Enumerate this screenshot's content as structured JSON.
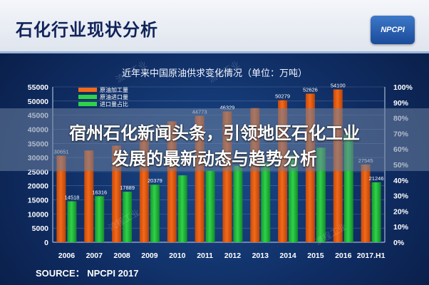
{
  "header": {
    "title": "石化行业现状分析",
    "logo_text": "NPCPI"
  },
  "overlay": {
    "line1": "宿州石化新闻头条，引领地区石化工业",
    "line2": "发展的最新动态与趋势分析"
  },
  "source": "SOURCE：  NPCPI 2017",
  "watermark": "流程工业",
  "colors": {
    "production": "#f26a1b",
    "import": "#2fd24a",
    "header_bg": "#e8ecf3",
    "title_text": "#10235a"
  },
  "chart_data": {
    "type": "bar",
    "title": "近年来中国原油供求变化情况（单位：万吨）",
    "categories": [
      "2006",
      "2007",
      "2008",
      "2009",
      "2010",
      "2011",
      "2012",
      "2013",
      "2014",
      "2015",
      "2016",
      "2017.H1"
    ],
    "series": [
      {
        "name": "原油加工量",
        "values": [
          30651,
          32500,
          34200,
          37500,
          42800,
          44773,
          46329,
          47500,
          50279,
          52626,
          54100,
          27545
        ]
      },
      {
        "name": "原油进口量",
        "values": [
          14518,
          16316,
          17889,
          20379,
          23700,
          25300,
          27100,
          28200,
          30800,
          33500,
          38100,
          21246
        ]
      }
    ],
    "data_labels": [
      [
        "30651",
        "",
        "",
        "",
        "",
        "44773",
        "46329",
        "",
        "50279",
        "52626",
        "54100",
        "27545"
      ],
      [
        "14518",
        "16316",
        "17889",
        "20379",
        "",
        "",
        "",
        "",
        "",
        "",
        "",
        "21246"
      ]
    ],
    "legend_entries": [
      "原油加工量",
      "原油进口量",
      "进口量占比"
    ],
    "legend_placement": "top-left",
    "left_axis": {
      "ylim": [
        0,
        55000
      ],
      "ticks": [
        "0",
        "5000",
        "10000",
        "15000",
        "20000",
        "25000",
        "30000",
        "35000",
        "40000",
        "45000",
        "50000",
        "55000"
      ]
    },
    "right_axis": {
      "ticks": [
        "0%",
        "10%",
        "20%",
        "30%",
        "40%",
        "50%",
        "60%",
        "70%",
        "80%",
        "90%",
        "100%"
      ]
    },
    "grid": true
  }
}
